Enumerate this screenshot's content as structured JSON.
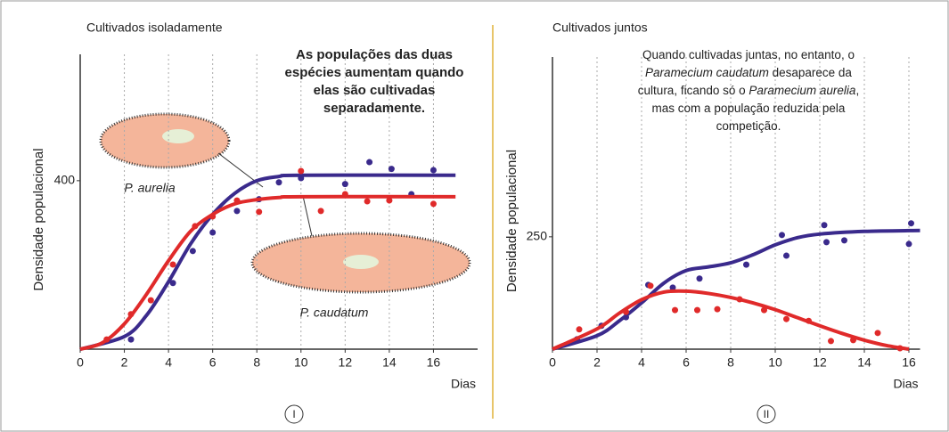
{
  "chart_data": [
    {
      "type": "line",
      "title": "Cultivados isoladamente",
      "panel": "I",
      "annotation": [
        [
          {
            "text": "As populações das duas",
            "italic": false
          }
        ],
        [
          {
            "text": "espécies aumentam quando",
            "italic": false
          }
        ],
        [
          {
            "text": "elas são cultivadas",
            "italic": false
          }
        ],
        [
          {
            "text": "separadamente.",
            "italic": false
          }
        ]
      ],
      "labels": [
        "P. aurelia",
        "P. caudatum"
      ],
      "ylabel": "Densidade populacional",
      "xlabel": "Dias",
      "xlim": [
        0,
        18
      ],
      "ylim": [
        0,
        700
      ],
      "xticks": [
        0,
        2,
        4,
        6,
        8,
        10,
        12,
        14,
        16
      ],
      "yticks": [
        400
      ],
      "grid": true,
      "series": [
        {
          "color": "#3a2a8c",
          "x": [
            0,
            2,
            3,
            4,
            5,
            6,
            7,
            8,
            9,
            10,
            17
          ],
          "values": [
            0,
            30,
            80,
            160,
            250,
            320,
            370,
            400,
            410,
            413,
            413
          ],
          "points_x": [
            2.3,
            4.2,
            5.1,
            6,
            7.1,
            8.1,
            9,
            10,
            12,
            13.1,
            14.1,
            15,
            16
          ],
          "points_y": [
            23,
            157,
            233,
            277,
            328,
            356,
            396,
            406,
            392,
            444,
            428,
            368,
            425
          ]
        },
        {
          "color": "#e02a2a",
          "x": [
            0,
            1,
            2,
            3,
            4,
            5,
            6,
            7,
            8,
            9,
            10,
            17
          ],
          "values": [
            0,
            15,
            60,
            130,
            210,
            280,
            320,
            345,
            355,
            360,
            362,
            362
          ],
          "points_x": [
            1.2,
            2.3,
            3.2,
            4.2,
            5.2,
            6,
            7.1,
            8.1,
            10,
            10.9,
            12,
            13,
            14,
            16
          ],
          "points_y": [
            23,
            83,
            116,
            201,
            292,
            315,
            353,
            326,
            423,
            328,
            368,
            351,
            353,
            345
          ]
        }
      ]
    },
    {
      "type": "line",
      "title": "Cultivados juntos",
      "panel": "II",
      "annotation": [
        [
          {
            "text": "Quando cultivadas juntas, no entanto, o",
            "italic": false
          }
        ],
        [
          {
            "text": "Paramecium caudatum",
            "italic": true
          },
          {
            "text": " desaparece da",
            "italic": false
          }
        ],
        [
          {
            "text": "cultura, ficando só o ",
            "italic": false
          },
          {
            "text": "Paramecium aurelia",
            "italic": true
          },
          {
            "text": ",",
            "italic": false
          }
        ],
        [
          {
            "text": "mas com a população reduzida pela",
            "italic": false
          }
        ],
        [
          {
            "text": "competição.",
            "italic": false
          }
        ]
      ],
      "labels": [],
      "ylabel": "Densidade populacional",
      "xlabel": "Dias",
      "xlim": [
        0,
        16.5
      ],
      "ylim": [
        0,
        650
      ],
      "xticks": [
        0,
        2,
        4,
        6,
        8,
        10,
        12,
        14,
        16
      ],
      "yticks": [
        250
      ],
      "grid": true,
      "series": [
        {
          "color": "#3a2a8c",
          "x": [
            0,
            2,
            3,
            4,
            5,
            6,
            7,
            8,
            9,
            10,
            11,
            12,
            14,
            16.5
          ],
          "values": [
            0,
            30,
            63,
            103,
            147,
            175,
            183,
            192,
            210,
            232,
            248,
            256,
            262,
            264
          ],
          "points_x": [
            1.1,
            2.2,
            3.3,
            4.3,
            5.4,
            6.6,
            8.7,
            10.3,
            10.5,
            12.2,
            12.3,
            13.1,
            16.1,
            16
          ],
          "points_y": [
            22,
            52,
            71,
            143,
            137,
            157,
            188,
            254,
            208,
            276,
            238,
            242,
            280,
            234
          ]
        },
        {
          "color": "#e02a2a",
          "x": [
            0,
            2,
            3,
            4,
            5,
            6,
            7,
            8,
            9,
            10,
            11,
            12,
            13,
            14,
            15,
            16
          ],
          "values": [
            0,
            45,
            80,
            110,
            127,
            129,
            124,
            115,
            103,
            88,
            70,
            52,
            35,
            20,
            8,
            0
          ],
          "points_x": [
            1.2,
            3.3,
            4.4,
            5.5,
            6.5,
            7.4,
            8.4,
            9.5,
            10.5,
            11.5,
            12.5,
            13.5,
            14.6,
            15.6
          ],
          "points_y": [
            44,
            83,
            141,
            87,
            87,
            89,
            111,
            87,
            67,
            63,
            18,
            20,
            36,
            2
          ]
        }
      ]
    }
  ]
}
